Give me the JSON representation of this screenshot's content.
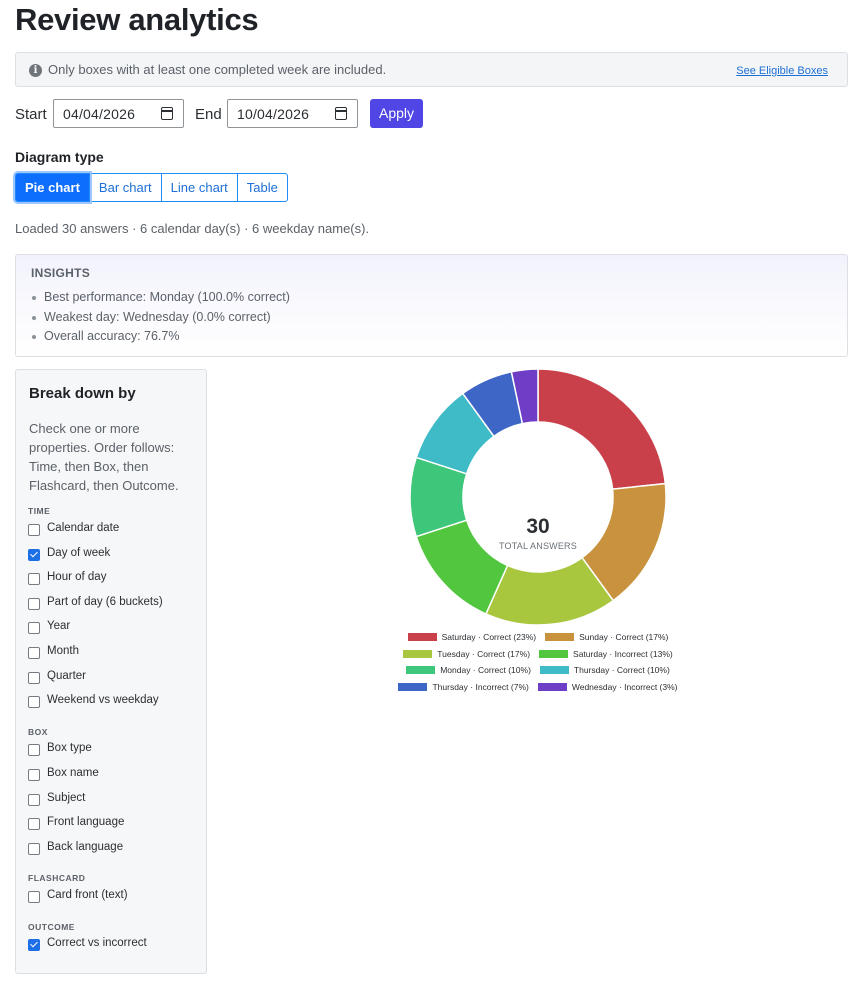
{
  "page": {
    "title": "Review analytics"
  },
  "notice": {
    "text": "Only boxes with at least one completed week are included.",
    "link": "See Eligible Boxes"
  },
  "dates": {
    "start_label": "Start",
    "start_value": "04/04/2026",
    "end_label": "End",
    "end_value": "10/04/2026",
    "apply_label": "Apply"
  },
  "diagram": {
    "label": "Diagram type",
    "options": [
      "Pie chart",
      "Bar chart",
      "Line chart",
      "Table"
    ],
    "selected": "Pie chart"
  },
  "status": {
    "loaded": "Loaded 30 answers · 6 calendar day(s) · 6 weekday name(s)."
  },
  "insights": {
    "title": "INSIGHTS",
    "items": [
      "Best performance: Monday (100.0% correct)",
      "Weakest day: Wednesday (0.0% correct)",
      "Overall accuracy: 76.7%"
    ]
  },
  "breakdown": {
    "title": "Break down by",
    "description": "Check one or more properties. Order follows: Time, then Box, then Flashcard, then Outcome.",
    "groups": [
      {
        "label": "TIME",
        "options": [
          {
            "label": "Calendar date",
            "checked": false
          },
          {
            "label": "Day of week",
            "checked": true
          },
          {
            "label": "Hour of day",
            "checked": false
          },
          {
            "label": "Part of day (6 buckets)",
            "checked": false
          },
          {
            "label": "Year",
            "checked": false
          },
          {
            "label": "Month",
            "checked": false
          },
          {
            "label": "Quarter",
            "checked": false
          },
          {
            "label": "Weekend vs weekday",
            "checked": false
          }
        ]
      },
      {
        "label": "BOX",
        "options": [
          {
            "label": "Box type",
            "checked": false
          },
          {
            "label": "Box name",
            "checked": false
          },
          {
            "label": "Subject",
            "checked": false
          },
          {
            "label": "Front language",
            "checked": false
          },
          {
            "label": "Back language",
            "checked": false
          }
        ]
      },
      {
        "label": "FLASHCARD",
        "options": [
          {
            "label": "Card front (text)",
            "checked": false
          }
        ]
      },
      {
        "label": "OUTCOME",
        "options": [
          {
            "label": "Correct vs incorrect",
            "checked": true
          }
        ]
      }
    ]
  },
  "chart": {
    "center_value": "30",
    "center_label": "TOTAL ANSWERS"
  },
  "chart_data": {
    "type": "pie",
    "total": 30,
    "slices": [
      {
        "label": "Saturday · Correct (23%)",
        "value": 7,
        "color": "#c9404a"
      },
      {
        "label": "Sunday · Correct (17%)",
        "value": 5,
        "color": "#c9923e"
      },
      {
        "label": "Tuesday · Correct (17%)",
        "value": 5,
        "color": "#a8c63e"
      },
      {
        "label": "Saturday · Incorrect (13%)",
        "value": 4,
        "color": "#52c63e"
      },
      {
        "label": "Monday · Correct (10%)",
        "value": 3,
        "color": "#3ec67a"
      },
      {
        "label": "Thursday · Correct (10%)",
        "value": 3,
        "color": "#3ebbc6"
      },
      {
        "label": "Thursday · Incorrect (7%)",
        "value": 2,
        "color": "#3e66c6"
      },
      {
        "label": "Wednesday · Incorrect (3%)",
        "value": 1,
        "color": "#6e3ec6"
      }
    ]
  }
}
